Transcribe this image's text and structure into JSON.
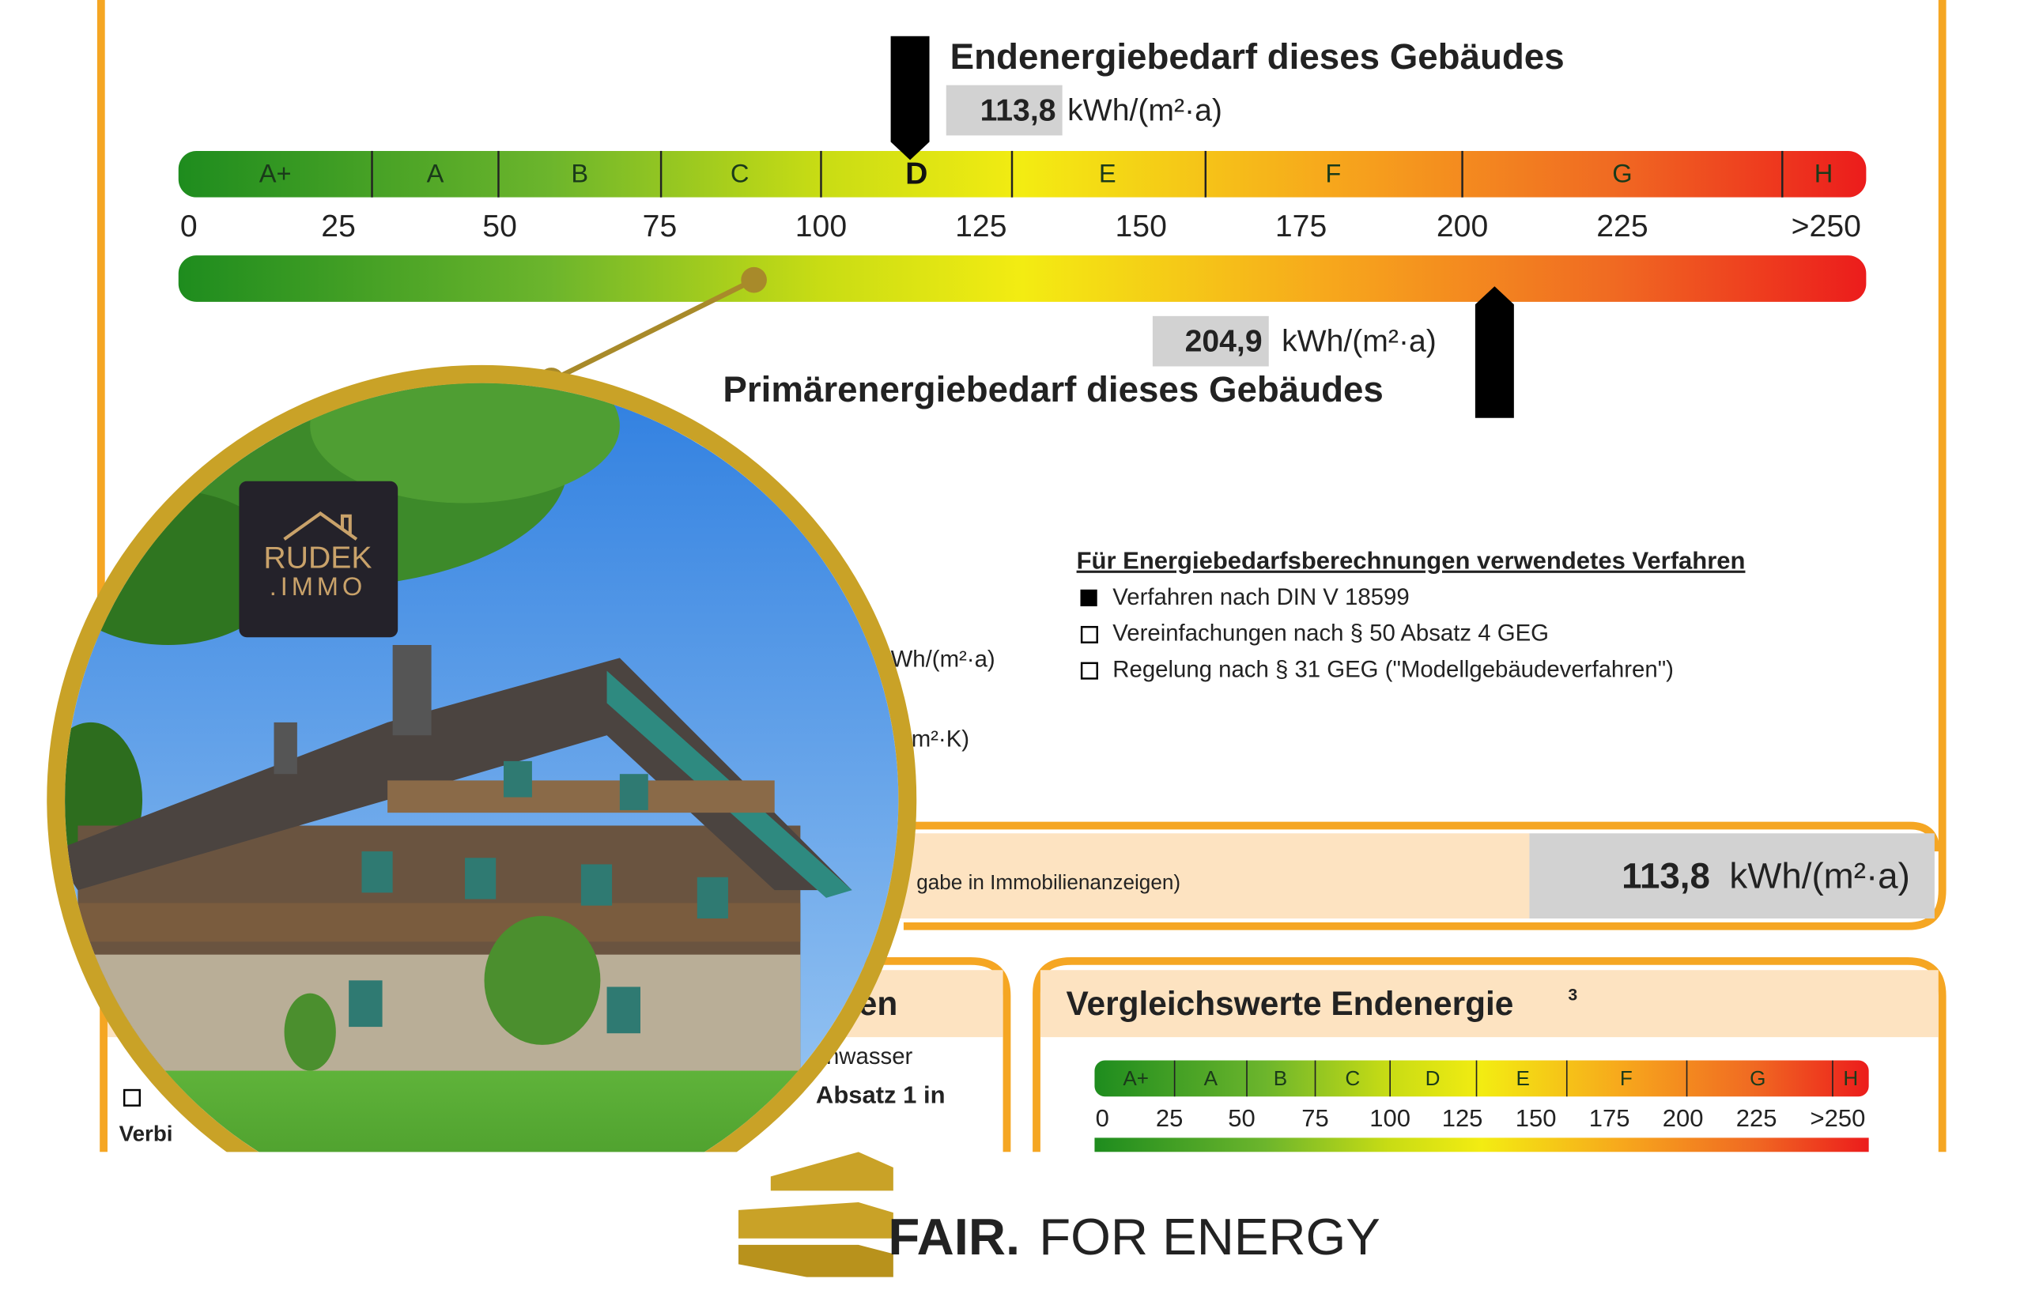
{
  "energy_label": {
    "final_title": "Endenergiebedarf dieses Gebäudes",
    "final_value": "113,8",
    "final_unit": "kWh/(m²·a)",
    "classes": [
      "A+",
      "A",
      "B",
      "C",
      "D",
      "E",
      "F",
      "G",
      "H"
    ],
    "scale": [
      "0",
      "25",
      "50",
      "75",
      "100",
      "125",
      "150",
      "175",
      "200",
      "225",
      ">250"
    ],
    "primary_value": "204,9",
    "primary_unit": "kWh/(m²·a)",
    "primary_title": "Primärenergiebedarf dieses Gebäudes"
  },
  "procedure": {
    "heading": "Für Energiebedarfsberechnungen verwendetes Verfahren",
    "options": [
      "Verfahren nach DIN V 18599",
      "Vereinfachungen nach § 50 Absatz 4 GEG",
      "Regelung nach § 31 GEG (\"Modellgebäudeverfahren\")"
    ]
  },
  "fragments": [
    "Wh/(m²·a)",
    "m²·K)",
    "gabe in Immobilienanzeigen)"
  ],
  "listing_value": {
    "value": "113,8",
    "unit": "kWh/(m²·a)"
  },
  "lower_left": {
    "fragments": [
      "en",
      "nwasser",
      "Absatz 1 in",
      "Verbi"
    ]
  },
  "comparison": {
    "title": "Vergleichswerte Endenergie",
    "footnote": "3",
    "classes": [
      "A+",
      "A",
      "B",
      "C",
      "D",
      "E",
      "F",
      "G",
      "H"
    ],
    "scale": [
      "0",
      "25",
      "50",
      "75",
      "100",
      "125",
      "150",
      "175",
      "200",
      "225",
      ">250"
    ]
  },
  "logo": {
    "name": "RUDEK",
    "sub": ".IMMO"
  },
  "footer": {
    "brand": "FAIR.",
    "tagline": "FOR ENERGY"
  }
}
